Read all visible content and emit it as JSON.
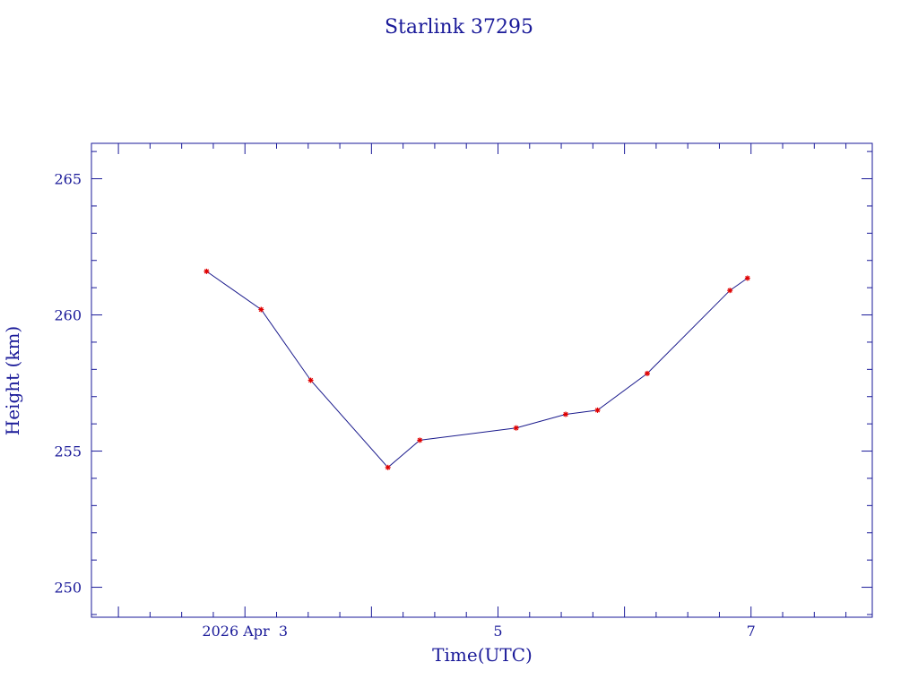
{
  "chart_data": {
    "type": "line",
    "title": "Starlink 37295",
    "xlabel": "Time(UTC)",
    "ylabel": "Height (km)",
    "x_unit": "days",
    "xlim": [
      "2026-04-01T18:53",
      "2026-04-07T23:00"
    ],
    "ylim": [
      248.9,
      266.3
    ],
    "x_tick_labels": [
      {
        "x": "2026-04-03T00:00",
        "label": "2026 Apr  3"
      },
      {
        "x": "2026-04-05T00:00",
        "label": "5"
      },
      {
        "x": "2026-04-07T00:00",
        "label": "7"
      }
    ],
    "y_ticks": [
      250,
      255,
      260,
      265
    ],
    "grid": false,
    "series": [
      {
        "color": "#1a1a8c",
        "marker_color": "#e00000",
        "x": [
          "2026-04-02T16:43",
          "2026-04-03T03:04",
          "2026-04-03T12:29",
          "2026-04-04T03:07",
          "2026-04-04T09:10",
          "2026-04-05T03:26",
          "2026-04-05T12:50",
          "2026-04-05T18:53",
          "2026-04-06T04:19",
          "2026-04-06T20:00",
          "2026-04-06T23:20"
        ],
        "y": [
          261.6,
          260.2,
          257.6,
          254.4,
          255.4,
          255.85,
          256.35,
          256.5,
          257.85,
          260.9,
          261.35
        ]
      }
    ]
  }
}
